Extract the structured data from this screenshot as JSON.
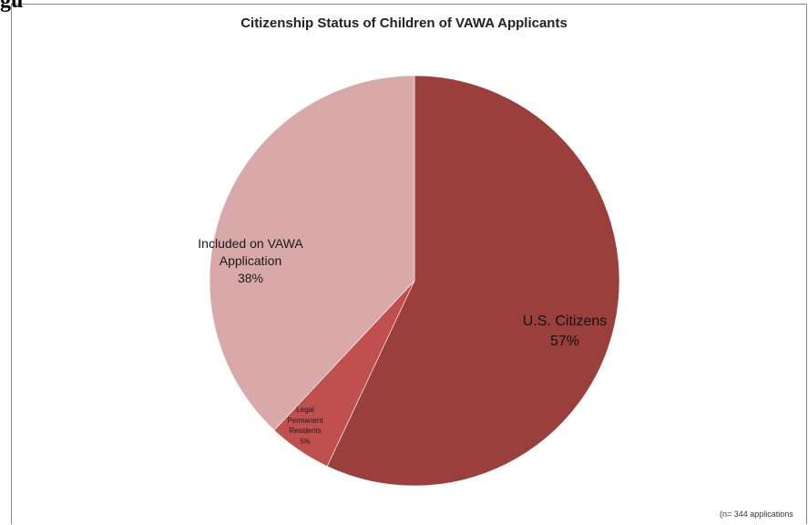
{
  "figure_label_fragment": "gu",
  "chart_data": {
    "type": "pie",
    "title": "Citizenship Status of Children of VAWA Applicants",
    "slices": [
      {
        "name": "U.S. Citizens",
        "pct_label": "57%",
        "value": 57,
        "color": "#9b3f3c"
      },
      {
        "name": "Legal Permanent Residents",
        "pct_label": "5%",
        "value": 5,
        "color": "#c0504d"
      },
      {
        "name": "Included on VAWA Application",
        "pct_label": "38%",
        "value": 38,
        "color": "#d8a9a8"
      }
    ],
    "labels": {
      "included_line1": "Included on VAWA",
      "included_line2": "Application",
      "lpr_line1": "Legal",
      "lpr_line2": "Permanent",
      "lpr_line3": "Residents"
    },
    "footnote": "(n= 344 applications"
  }
}
